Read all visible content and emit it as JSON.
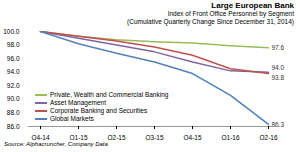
{
  "chart_data": {
    "type": "line",
    "title": "Large European Bank",
    "subtitle": [
      "Index of Front Office Personnel by Segment",
      "(Cumulative Quarterly Change Since December 31, 2014)"
    ],
    "source": "Source: Alphacruncher, Company Data",
    "categories": [
      "Q4-14",
      "Q1-15",
      "Q2-15",
      "Q3-15",
      "Q4-15",
      "Q1-16",
      "Q2-16"
    ],
    "series": [
      {
        "name": "Private, Wealth and Commercial Banking",
        "color": "#9bbb59",
        "values": [
          100.0,
          99.3,
          98.8,
          98.5,
          98.3,
          97.9,
          97.6
        ],
        "value_labels": [
          null,
          null,
          null,
          null,
          null,
          null,
          "97.6"
        ]
      },
      {
        "name": "Asset Management",
        "color": "#8064a2",
        "values": [
          100.0,
          99.0,
          98.0,
          97.0,
          95.5,
          94.2,
          94.0
        ],
        "value_labels": [
          null,
          null,
          null,
          null,
          null,
          null,
          "94.0"
        ]
      },
      {
        "name": "Corporate Banking and Securities",
        "color": "#c0504d",
        "values": [
          100.0,
          99.3,
          98.6,
          97.7,
          96.5,
          94.5,
          93.8
        ],
        "value_labels": [
          null,
          null,
          null,
          null,
          null,
          null,
          "93.8"
        ]
      },
      {
        "name": "Global Markets",
        "color": "#4f81bd",
        "values": [
          100.0,
          98.2,
          96.8,
          95.5,
          93.8,
          90.6,
          86.3
        ],
        "value_labels": [
          null,
          null,
          null,
          null,
          null,
          null,
          "86.3"
        ]
      }
    ],
    "ylim": [
      86,
      100
    ],
    "yticks": [
      {
        "value": 86,
        "label": "86.0"
      },
      {
        "value": 88,
        "label": "88.0"
      },
      {
        "value": 90,
        "label": "90.0"
      },
      {
        "value": 92,
        "label": "92.0"
      },
      {
        "value": 94,
        "label": "94.0"
      },
      {
        "value": 96,
        "label": "96.0"
      },
      {
        "value": 98,
        "label": "98.0"
      },
      {
        "value": 100,
        "label": "100.0"
      }
    ],
    "grid": false,
    "legend": "lower left",
    "data_labels": true
  }
}
